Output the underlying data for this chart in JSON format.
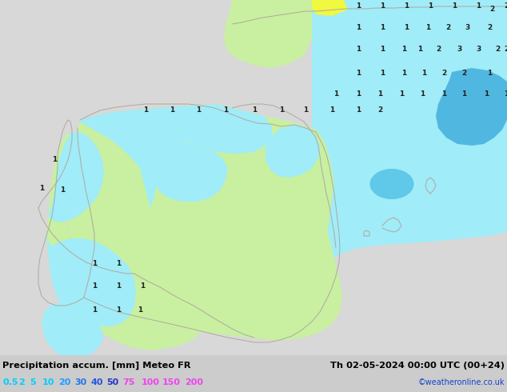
{
  "title_left": "Precipitation accum. [mm] Meteo FR",
  "title_right": "Th 02-05-2024 00:00 UTC (00+24)",
  "credit": "©weatheronline.co.uk",
  "legend_values": [
    "0.5",
    "2",
    "5",
    "10",
    "20",
    "30",
    "40",
    "50",
    "75",
    "100",
    "150",
    "200"
  ],
  "bg_color": "#d8d8d8",
  "map_bg": "#d8d8d8",
  "light_green": "#c8f0a0",
  "light_cyan": "#a0ecf8",
  "mid_cyan": "#70d8f0",
  "deep_blue": "#50c0e8",
  "yellow": "#f0f840",
  "border_color": "#b0a8a0",
  "label_color": "#222222",
  "bottom_bar_color": "#c8c8c8",
  "fig_width": 6.34,
  "fig_height": 4.9,
  "dpi": 100
}
